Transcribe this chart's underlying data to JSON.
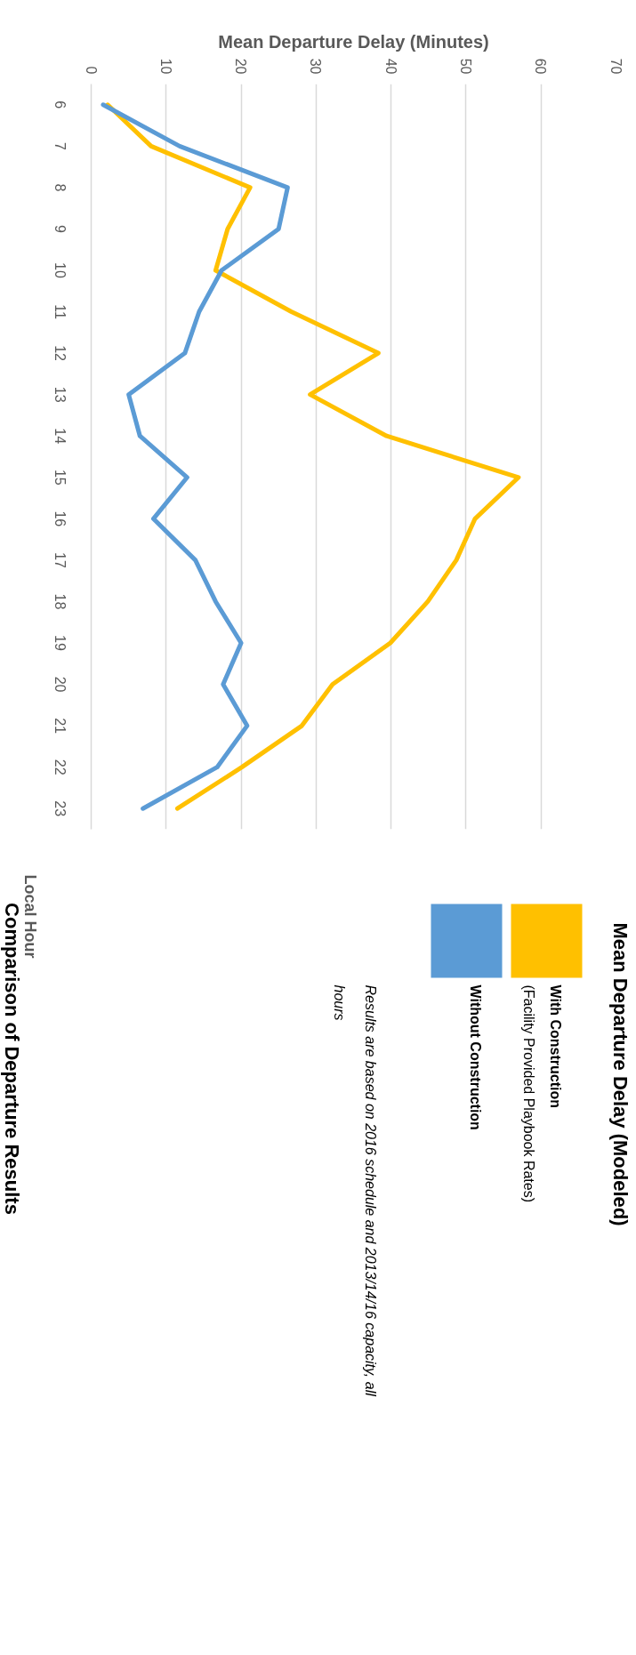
{
  "chart_data": {
    "type": "line",
    "title": "Comparison of Departure Results",
    "xlabel": "Mean Departure Delay (Minutes)",
    "ylabel": "Local Hour",
    "legend_title": "Mean Departure Delay (Modeled)",
    "series": [
      {
        "name": "With Construction\n(Facility Provided Playbook Rates)",
        "color": "#ffc000",
        "x": [
          2.2,
          8.0,
          21.2,
          18.2,
          16.6,
          26.7,
          38.3,
          29.2,
          39.4,
          57.0,
          51.2,
          48.7,
          44.9,
          39.9,
          32.2,
          28.1,
          20.1,
          11.5
        ],
        "values": [
          6,
          7,
          8,
          9,
          10,
          11,
          12,
          13,
          14,
          15,
          16,
          17,
          18,
          19,
          20,
          21,
          22,
          23
        ]
      },
      {
        "name": "Without Construction",
        "color": "#5b9bd5",
        "x": [
          1.6,
          11.8,
          26.2,
          25.0,
          17.4,
          14.4,
          12.5,
          5.0,
          6.5,
          12.8,
          8.3,
          13.9,
          16.6,
          20.0,
          17.6,
          20.8,
          16.8,
          6.9
        ],
        "values": [
          6,
          7,
          8,
          9,
          10,
          11,
          12,
          13,
          14,
          15,
          16,
          17,
          18,
          19,
          20,
          21,
          22,
          23
        ]
      }
    ],
    "xlim": [
      0,
      70
    ],
    "xticks": [
      0,
      10,
      20,
      30,
      40,
      50,
      60,
      70
    ],
    "ylim": [
      23.5,
      5.5
    ],
    "yticks": [
      6,
      7,
      8,
      9,
      10,
      11,
      12,
      13,
      14,
      15,
      16,
      17,
      18,
      19,
      20,
      21,
      22,
      23
    ],
    "grid": "x",
    "legend": "right",
    "annotations": [
      "Results are based on 2016 schedule and 2013/14/16 capacity, all hours"
    ]
  }
}
